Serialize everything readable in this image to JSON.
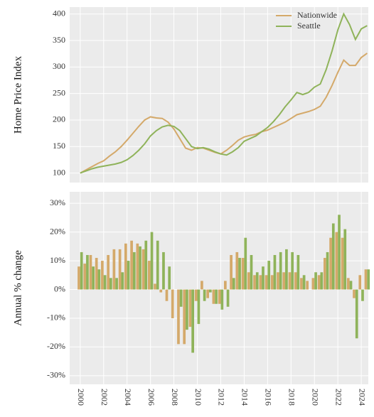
{
  "chart_data": [
    {
      "type": "line",
      "y_label": "Home Price Index",
      "x": [
        2000,
        2000.5,
        2001,
        2001.5,
        2002,
        2002.5,
        2003,
        2003.5,
        2004,
        2004.5,
        2005,
        2005.5,
        2006,
        2006.5,
        2007,
        2007.5,
        2008,
        2008.5,
        2009,
        2009.5,
        2010,
        2010.5,
        2011,
        2011.5,
        2012,
        2012.5,
        2013,
        2013.5,
        2014,
        2014.5,
        2015,
        2015.5,
        2016,
        2016.5,
        2017,
        2017.5,
        2018,
        2018.5,
        2019,
        2019.5,
        2020,
        2020.5,
        2021,
        2021.5,
        2022,
        2022.5,
        2023,
        2023.5,
        2024,
        2024.5
      ],
      "series": [
        {
          "name": "Nationwide",
          "color": "#d4a96a",
          "values": [
            100,
            106,
            112,
            118,
            123,
            132,
            140,
            150,
            162,
            175,
            188,
            200,
            206,
            204,
            203,
            196,
            183,
            165,
            147,
            143,
            148,
            147,
            143,
            139,
            136,
            143,
            152,
            162,
            168,
            171,
            173,
            178,
            181,
            186,
            191,
            196,
            203,
            210,
            213,
            216,
            220,
            226,
            243,
            265,
            290,
            313,
            303,
            303,
            318,
            326
          ]
        },
        {
          "name": "Seattle",
          "color": "#8fb35a",
          "values": [
            100,
            104,
            108,
            111,
            113,
            115,
            117,
            120,
            125,
            133,
            143,
            155,
            170,
            180,
            187,
            190,
            188,
            180,
            165,
            150,
            146,
            148,
            145,
            140,
            136,
            134,
            140,
            148,
            160,
            165,
            170,
            178,
            186,
            197,
            210,
            225,
            238,
            252,
            248,
            252,
            262,
            268,
            295,
            330,
            370,
            400,
            380,
            352,
            372,
            378
          ]
        }
      ],
      "xlim": [
        1999.1,
        2024.6
      ],
      "xticks": [
        2000,
        2002,
        2004,
        2006,
        2008,
        2010,
        2012,
        2014,
        2016,
        2018,
        2020,
        2022,
        2024
      ],
      "ylim": [
        82,
        413
      ],
      "yticks": [
        100,
        150,
        200,
        250,
        300,
        350,
        400
      ],
      "grid": true,
      "legend": "top-right"
    },
    {
      "type": "bar",
      "y_label": "Annual % change",
      "x": [
        2000,
        2000.5,
        2001,
        2001.5,
        2002,
        2002.5,
        2003,
        2003.5,
        2004,
        2004.5,
        2005,
        2005.5,
        2006,
        2006.5,
        2007,
        2007.5,
        2008,
        2008.5,
        2009,
        2009.5,
        2010,
        2010.5,
        2011,
        2011.5,
        2012,
        2012.5,
        2013,
        2013.5,
        2014,
        2014.5,
        2015,
        2015.5,
        2016,
        2016.5,
        2017,
        2017.5,
        2018,
        2018.5,
        2019,
        2019.5,
        2020,
        2020.5,
        2021,
        2021.5,
        2022,
        2022.5,
        2023,
        2023.5,
        2024,
        2024.5
      ],
      "series": [
        {
          "name": "Nationwide",
          "color": "#d4a96a",
          "values": [
            8,
            9,
            12,
            11,
            10,
            12,
            14,
            14,
            16,
            17,
            16,
            14,
            10,
            2,
            -1,
            -4,
            -10,
            -19,
            -19,
            -13,
            -4,
            3,
            -3,
            -5,
            -5,
            3,
            12,
            13,
            11,
            6,
            5,
            5,
            5,
            5,
            6,
            6,
            6,
            6,
            4,
            3,
            4,
            5,
            11,
            18,
            20,
            18,
            4,
            -3,
            5,
            7
          ]
        },
        {
          "name": "Seattle",
          "color": "#8fb35a",
          "values": [
            13,
            12,
            8,
            7,
            5,
            4,
            4,
            6,
            10,
            13,
            15,
            17,
            20,
            17,
            13,
            8,
            0,
            -6,
            -14,
            -22,
            -12,
            -4,
            -1,
            -5,
            -7,
            -6,
            4,
            11,
            18,
            12,
            6,
            8,
            10,
            12,
            13,
            14,
            13,
            12,
            5,
            0,
            6,
            6,
            13,
            23,
            26,
            21,
            3,
            -17,
            -4,
            7
          ]
        }
      ],
      "xlim": [
        1999.1,
        2024.6
      ],
      "xticks": [
        2000,
        2002,
        2004,
        2006,
        2008,
        2010,
        2012,
        2014,
        2016,
        2018,
        2020,
        2022,
        2024
      ],
      "ylim": [
        -33,
        34
      ],
      "yticks": [
        {
          "value": -30,
          "label": "-30%"
        },
        {
          "value": -20,
          "label": "-20%"
        },
        {
          "value": -10,
          "label": "-10%"
        },
        {
          "value": 0,
          "label": "0%"
        },
        {
          "value": 10,
          "label": "10%"
        },
        {
          "value": 20,
          "label": "20%"
        },
        {
          "value": 30,
          "label": "30%"
        }
      ],
      "grid": true
    }
  ]
}
